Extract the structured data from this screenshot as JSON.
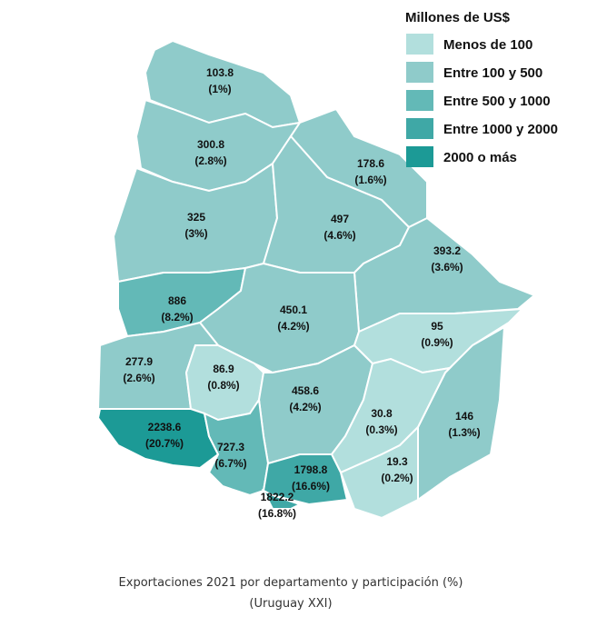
{
  "map": {
    "legend": {
      "title": "Millones de US$",
      "items": [
        {
          "label": "Menos de 100",
          "color": "#b2dfdd"
        },
        {
          "label": "Entre 100 y 500",
          "color": "#8fcbca"
        },
        {
          "label": "Entre 500 y 1000",
          "color": "#63b9b7"
        },
        {
          "label": "Entre 1000 y 2000",
          "color": "#3fa8a6"
        },
        {
          "label": "2000 o más",
          "color": "#1c9a96"
        }
      ]
    },
    "regions": [
      {
        "value": 103.8,
        "share": 1,
        "share_label": "(1%)",
        "class": 1
      },
      {
        "value": 300.8,
        "share": 2.8,
        "share_label": "(2.8%)",
        "class": 1
      },
      {
        "value": 178.6,
        "share": 1.6,
        "share_label": "(1.6%)",
        "class": 1
      },
      {
        "value": 325,
        "share": 3,
        "share_label": "(3%)",
        "class": 1
      },
      {
        "value": 497,
        "share": 4.6,
        "share_label": "(4.6%)",
        "class": 1
      },
      {
        "value": 393.2,
        "share": 3.6,
        "share_label": "(3.6%)",
        "class": 1
      },
      {
        "value": 886,
        "share": 8.2,
        "share_label": "(8.2%)",
        "class": 2
      },
      {
        "value": 450.1,
        "share": 4.2,
        "share_label": "(4.2%)",
        "class": 1
      },
      {
        "value": 277.9,
        "share": 2.6,
        "share_label": "(2.6%)",
        "class": 1
      },
      {
        "value": 86.9,
        "share": 0.8,
        "share_label": "(0.8%)",
        "class": 0
      },
      {
        "value": 458.6,
        "share": 4.2,
        "share_label": "(4.2%)",
        "class": 1
      },
      {
        "value": 95,
        "share": 0.9,
        "share_label": "(0.9%)",
        "class": 0
      },
      {
        "value": 146,
        "share": 1.3,
        "share_label": "(1.3%)",
        "class": 1
      },
      {
        "value": 30.8,
        "share": 0.3,
        "share_label": "(0.3%)",
        "class": 0
      },
      {
        "value": 19.3,
        "share": 0.2,
        "share_label": "(0.2%)",
        "class": 0
      },
      {
        "value": 2238.6,
        "share": 20.7,
        "share_label": "(20.7%)",
        "class": 4
      },
      {
        "value": 727.3,
        "share": 6.7,
        "share_label": "(6.7%)",
        "class": 2
      },
      {
        "value": 1798.8,
        "share": 16.6,
        "share_label": "(16.6%)",
        "class": 3
      },
      {
        "value": 1822.2,
        "share": 16.8,
        "share_label": "(16.8%)",
        "class": 3
      }
    ]
  },
  "caption": {
    "line1": "Exportaciones 2021 por departamento y participación (%)",
    "line2": "(Uruguay XXI)"
  }
}
